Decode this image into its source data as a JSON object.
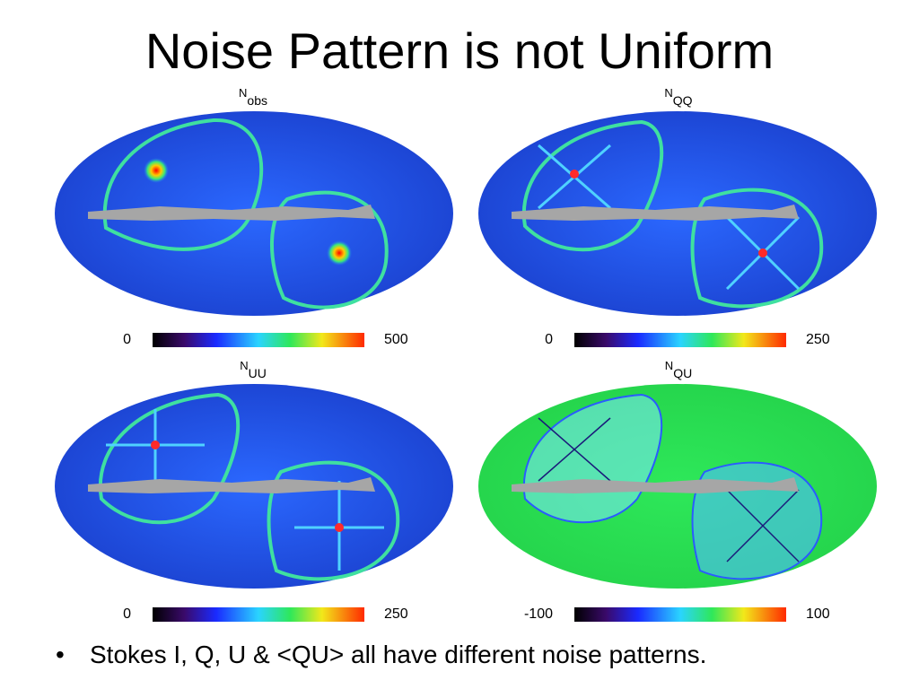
{
  "title": "Noise Pattern is not Uniform",
  "panels": [
    {
      "label_base": "N",
      "label_sub": "obs",
      "scale_min": "0",
      "scale_max": "500",
      "style": "blue"
    },
    {
      "label_base": "N",
      "label_sub": "QQ",
      "scale_min": "0",
      "scale_max": "250",
      "style": "blue"
    },
    {
      "label_base": "N",
      "label_sub": "UU",
      "scale_min": "0",
      "scale_max": "250",
      "style": "blue"
    },
    {
      "label_base": "N",
      "label_sub": "QU",
      "scale_min": "-100",
      "scale_max": "100",
      "style": "green"
    }
  ],
  "bullet": {
    "marker": "•",
    "text": "Stokes I, Q, U & <QU> all have different noise patterns."
  },
  "colors": {
    "map_blue": "#1f4ee6",
    "map_green": "#2ee85a",
    "galactic_mask": "#a6a6a6",
    "ring": "#3fe0a0"
  }
}
